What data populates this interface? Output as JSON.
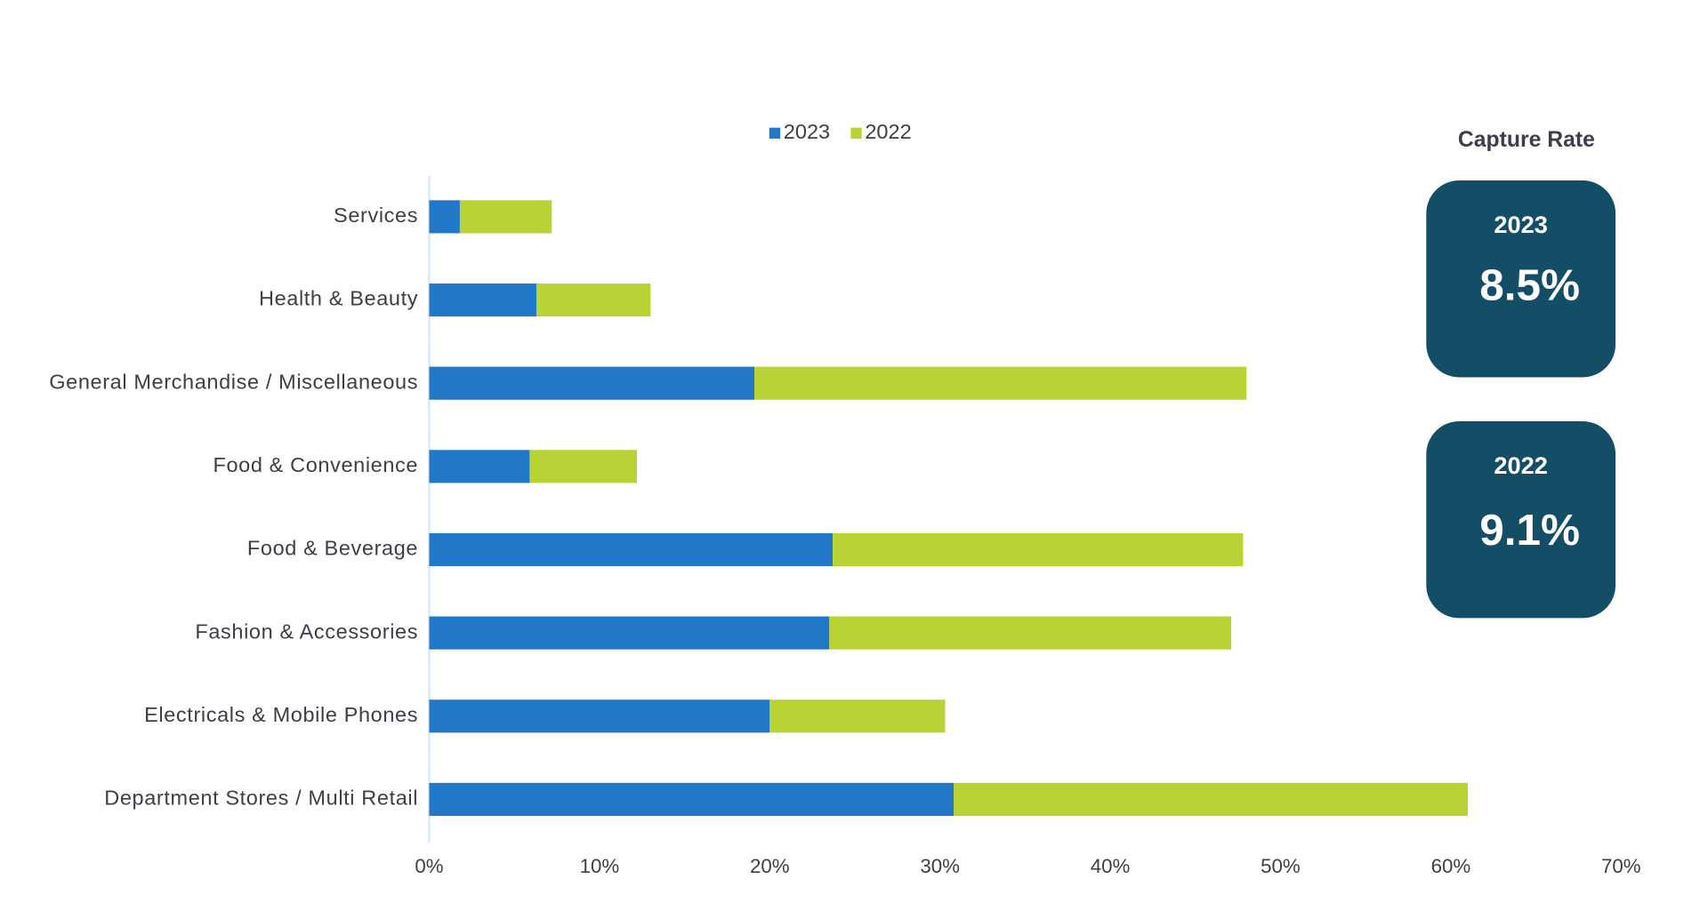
{
  "chart_data": {
    "type": "stacked-barh",
    "categories": [
      "Services",
      "Health & Beauty",
      "General Merchandise / Miscellaneous",
      "Food & Convenience",
      "Food & Beverage",
      "Fashion & Accessories",
      "Electricals & Mobile Phones",
      "Department Stores / Multi Retail"
    ],
    "series": [
      {
        "name": "2023",
        "color": "#2178c8",
        "values": [
          1.8,
          6.3,
          19.1,
          5.9,
          23.7,
          23.5,
          20.0,
          30.8
        ]
      },
      {
        "name": "2022",
        "color": "#bad334",
        "values": [
          5.4,
          6.7,
          28.9,
          6.3,
          24.1,
          23.6,
          10.3,
          30.2
        ]
      }
    ],
    "xlim": [
      0,
      70
    ],
    "xticks": [
      {
        "value": 0,
        "label": "0%"
      },
      {
        "value": 10,
        "label": "10%"
      },
      {
        "value": 20,
        "label": "20%"
      },
      {
        "value": 30,
        "label": "30%"
      },
      {
        "value": 40,
        "label": "40%"
      },
      {
        "value": 50,
        "label": "50%"
      },
      {
        "value": 60,
        "label": "60%"
      },
      {
        "value": 70,
        "label": "70%"
      }
    ],
    "legend": "top",
    "grid": false
  },
  "capture_rate": {
    "title": "Capture Rate",
    "cards": [
      {
        "year": "2023",
        "value": "8.5%"
      },
      {
        "year": "2022",
        "value": "9.1%"
      }
    ]
  }
}
